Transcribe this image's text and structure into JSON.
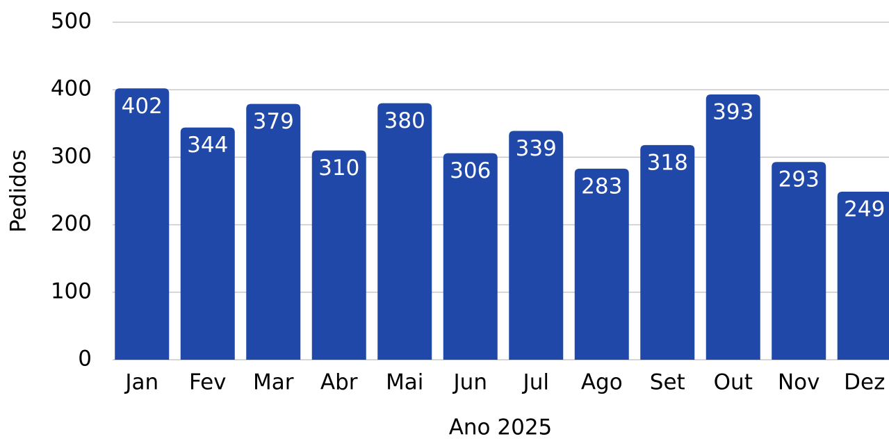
{
  "chart_data": {
    "type": "bar",
    "x_label": "Ano 2025",
    "y_label": "Pedidos",
    "categories": [
      "Jan",
      "Fev",
      "Mar",
      "Abr",
      "Mai",
      "Jun",
      "Jul",
      "Ago",
      "Set",
      "Out",
      "Nov",
      "Dez"
    ],
    "values": [
      402,
      344,
      379,
      310,
      380,
      306,
      339,
      283,
      318,
      393,
      293,
      249
    ],
    "color": "#1f48a8",
    "ylim": [
      0,
      500
    ],
    "yticks": [
      0,
      100,
      200,
      300,
      400,
      500
    ],
    "grid": true
  }
}
